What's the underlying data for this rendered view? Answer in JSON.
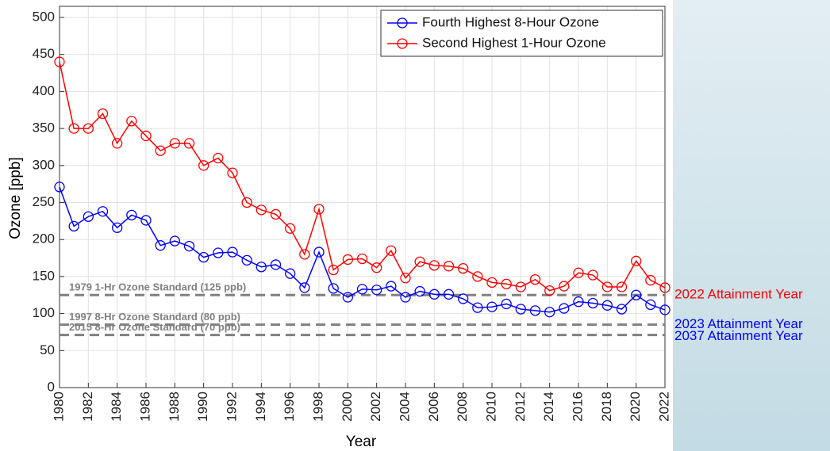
{
  "chart_data": {
    "type": "line",
    "x_label": "Year",
    "y_label": "Ozone [ppb]",
    "x": [
      1980,
      1981,
      1982,
      1983,
      1984,
      1985,
      1986,
      1987,
      1988,
      1989,
      1990,
      1991,
      1992,
      1993,
      1994,
      1995,
      1996,
      1997,
      1998,
      1999,
      2000,
      2001,
      2002,
      2003,
      2004,
      2005,
      2006,
      2007,
      2008,
      2009,
      2010,
      2011,
      2012,
      2013,
      2014,
      2015,
      2016,
      2017,
      2018,
      2019,
      2020,
      2021,
      2022
    ],
    "series": [
      {
        "name": "Fourth Highest 8-Hour Ozone",
        "color": "#0000ff",
        "values": [
          271,
          218,
          231,
          238,
          216,
          233,
          226,
          192,
          198,
          191,
          176,
          182,
          183,
          172,
          163,
          166,
          154,
          135,
          183,
          134,
          122,
          133,
          132,
          137,
          122,
          130,
          126,
          126,
          120,
          108,
          109,
          113,
          106,
          104,
          102,
          107,
          116,
          114,
          111,
          106,
          125,
          112,
          105
        ]
      },
      {
        "name": "Second Highest 1-Hour Ozone",
        "color": "#ff0000",
        "values": [
          440,
          350,
          350,
          370,
          330,
          360,
          340,
          320,
          330,
          330,
          300,
          310,
          290,
          250,
          240,
          234,
          215,
          180,
          241,
          159,
          173,
          174,
          162,
          185,
          148,
          170,
          165,
          164,
          161,
          150,
          142,
          140,
          136,
          146,
          131,
          137,
          155,
          152,
          136,
          136,
          171,
          145,
          135
        ]
      }
    ],
    "xlim": [
      1980,
      2022
    ],
    "xticks": [
      1980,
      1982,
      1984,
      1986,
      1988,
      1990,
      1992,
      1994,
      1996,
      1998,
      2000,
      2002,
      2004,
      2006,
      2008,
      2010,
      2012,
      2014,
      2016,
      2018,
      2020,
      2022
    ],
    "ylim": [
      0,
      515
    ],
    "yticks": [
      0,
      50,
      100,
      150,
      200,
      250,
      300,
      350,
      400,
      450,
      500
    ],
    "grid": true,
    "legend": "upper right",
    "reference_lines": [
      {
        "value": 125,
        "label": "1979 1-Hr Ozone Standard (125 ppb)",
        "color": "#808080",
        "attainment": "2022 Attainment Year",
        "attainment_color": "#ff0000"
      },
      {
        "value": 85,
        "label": "1997 8-Hr Ozone Standard (80 ppb)",
        "color": "#808080",
        "attainment": "2023 Attainment Year",
        "attainment_color": "#0000ff"
      },
      {
        "value": 71,
        "label": "2015 8-Hr Ozone Standard (70 ppb)",
        "color": "#808080",
        "attainment": "2037 Attainment Year",
        "attainment_color": "#0000ff"
      }
    ]
  }
}
